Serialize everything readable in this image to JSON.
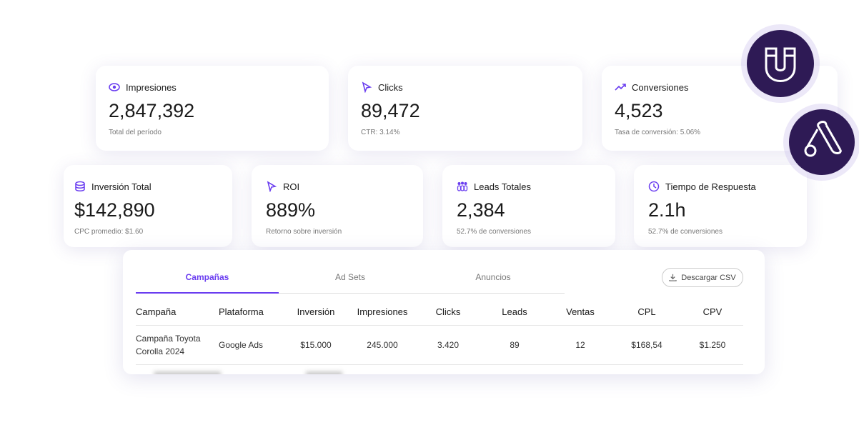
{
  "cards_top": [
    {
      "label": "Impresiones",
      "value": "2,847,392",
      "note": "Total del período"
    },
    {
      "label": "Clicks",
      "value": "89,472",
      "note": "CTR: 3.14%"
    },
    {
      "label": "Conversiones",
      "value": "4,523",
      "note": "Tasa de conversión: 5.06%"
    }
  ],
  "cards_bottom": [
    {
      "label": "Inversión Total",
      "value": "$142,890",
      "note": "CPC promedio: $1.60"
    },
    {
      "label": "ROI",
      "value": "889%",
      "note": "Retorno sobre inversión"
    },
    {
      "label": "Leads Totales",
      "value": "2,384",
      "note": "52.7% de conversiones"
    },
    {
      "label": "Tiempo de Respuesta",
      "value": "2.1h",
      "note": "52.7% de conversiones"
    }
  ],
  "tabs": [
    "Campañas",
    "Ad Sets",
    "Anuncios"
  ],
  "download_button": "Descargar CSV",
  "table": {
    "headers": [
      "Campaña",
      "Plataforma",
      "Inversión",
      "Impresiones",
      "Clicks",
      "Leads",
      "Ventas",
      "CPL",
      "CPV"
    ],
    "rows": [
      [
        "Campaña Toyota Corolla 2024",
        "Google Ads",
        "$15.000",
        "245.000",
        "3.420",
        "89",
        "12",
        "$168,54",
        "$1.250"
      ]
    ]
  }
}
